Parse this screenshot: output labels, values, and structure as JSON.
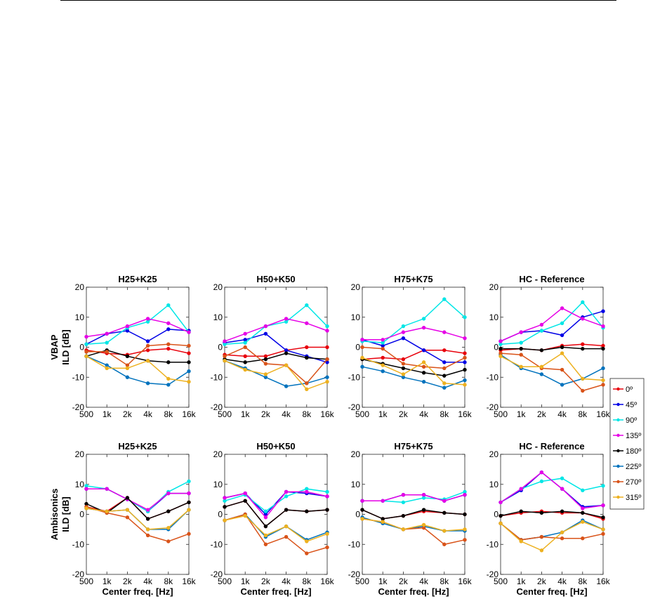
{
  "chart_data": {
    "type": "line",
    "x": [
      "500",
      "1k",
      "2k",
      "4k",
      "8k",
      "16k"
    ],
    "ylim": [
      -20,
      20
    ],
    "yticks": [
      "20",
      "10",
      "0",
      "-10",
      "-20"
    ],
    "xlabel": "Center freq. [Hz]",
    "grid": false,
    "legend_position": "right",
    "legend": [
      "0º",
      "45º",
      "90º",
      "135º",
      "180º",
      "225º",
      "270º",
      "315º"
    ],
    "colors": [
      "#e8000b",
      "#0000e6",
      "#00e6e6",
      "#e600e6",
      "#000000",
      "#0072bd",
      "#d95319",
      "#edb120"
    ],
    "rows": [
      {
        "label_lines": [
          "VBAP",
          "ILD [dB]"
        ],
        "panels": [
          {
            "title": "H25+K25",
            "series": [
              {
                "name": "0º",
                "values": [
                  -1,
                  -2,
                  -2.5,
                  -1,
                  -0.5,
                  -2
                ]
              },
              {
                "name": "45º",
                "values": [
                  1,
                  4.5,
                  5.5,
                  2,
                  6,
                  5.5
                ]
              },
              {
                "name": "90º",
                "values": [
                  1,
                  1.5,
                  6.5,
                  8.5,
                  14,
                  5
                ]
              },
              {
                "name": "135º",
                "values": [
                  3.5,
                  4.5,
                  7,
                  9.5,
                  8,
                  5
                ]
              },
              {
                "name": "180º",
                "values": [
                  -3,
                  -1,
                  -3,
                  -4.5,
                  -5,
                  -5
                ]
              },
              {
                "name": "225º",
                "values": [
                  -3,
                  -6,
                  -10,
                  -12,
                  -12.5,
                  -8
                ]
              },
              {
                "name": "270º",
                "values": [
                  -1.5,
                  -1.5,
                  -6,
                  0.5,
                  1,
                  0.5
                ]
              },
              {
                "name": "315º",
                "values": [
                  -3,
                  -7,
                  -7,
                  -4.5,
                  -10.5,
                  -11.5
                ]
              }
            ]
          },
          {
            "title": "H50+K50",
            "series": [
              {
                "name": "0º",
                "values": [
                  -2.5,
                  -3,
                  -3,
                  -1,
                  0,
                  0
                ]
              },
              {
                "name": "45º",
                "values": [
                  1.5,
                  2.5,
                  4.5,
                  -1,
                  -3,
                  -5
                ]
              },
              {
                "name": "90º",
                "values": [
                  1,
                  1.5,
                  7,
                  8.5,
                  14,
                  7
                ]
              },
              {
                "name": "135º",
                "values": [
                  2,
                  4.5,
                  7,
                  9.5,
                  8,
                  5.5
                ]
              },
              {
                "name": "180º",
                "values": [
                  -4,
                  -5,
                  -4,
                  -2,
                  -3.5,
                  -4
                ]
              },
              {
                "name": "225º",
                "values": [
                  -4.5,
                  -7,
                  -10,
                  -13,
                  -12,
                  -10
                ]
              },
              {
                "name": "270º",
                "values": [
                  -3,
                  0,
                  -5.5,
                  -6,
                  -12,
                  -4
                ]
              },
              {
                "name": "315º",
                "values": [
                  -4.5,
                  -7.5,
                  -9,
                  -6,
                  -14,
                  -11.5
                ]
              }
            ]
          },
          {
            "title": "H75+K75",
            "series": [
              {
                "name": "0º",
                "values": [
                  -4,
                  -3.5,
                  -4,
                  -1,
                  -1,
                  -2
                ]
              },
              {
                "name": "45º",
                "values": [
                  2.5,
                  0.5,
                  3,
                  -1,
                  -5,
                  -5
                ]
              },
              {
                "name": "90º",
                "values": [
                  2,
                  1.5,
                  7,
                  9.5,
                  16,
                  10
                ]
              },
              {
                "name": "135º",
                "values": [
                  2.5,
                  2.5,
                  5,
                  6.5,
                  5,
                  3
                ]
              },
              {
                "name": "180º",
                "values": [
                  -4,
                  -5.5,
                  -7,
                  -8.5,
                  -9.5,
                  -7.5
                ]
              },
              {
                "name": "225º",
                "values": [
                  -6.5,
                  -8,
                  -10,
                  -11.5,
                  -13.5,
                  -11
                ]
              },
              {
                "name": "270º",
                "values": [
                  0,
                  -0.5,
                  -5.5,
                  -6.5,
                  -7,
                  -3.5
                ]
              },
              {
                "name": "315º",
                "values": [
                  -3.5,
                  -6,
                  -9,
                  -5,
                  -12,
                  -12.5
                ]
              }
            ]
          },
          {
            "title": "HC - Reference",
            "series": [
              {
                "name": "0º",
                "values": [
                  -1,
                  -0.5,
                  -1,
                  0.5,
                  1,
                  0.5
                ]
              },
              {
                "name": "45º",
                "values": [
                  2,
                  5,
                  5.5,
                  4,
                  10,
                  12
                ]
              },
              {
                "name": "90º",
                "values": [
                  1,
                  1.5,
                  5.5,
                  8,
                  15,
                  6.5
                ]
              },
              {
                "name": "135º",
                "values": [
                  2,
                  5,
                  7.5,
                  13,
                  9.5,
                  7
                ]
              },
              {
                "name": "180º",
                "values": [
                  -0.5,
                  -0.5,
                  -1,
                  0,
                  -0.5,
                  -0.5
                ]
              },
              {
                "name": "225º",
                "values": [
                  -2.5,
                  -7,
                  -9,
                  -12.5,
                  -10.5,
                  -7
                ]
              },
              {
                "name": "270º",
                "values": [
                  -2,
                  -2.5,
                  -7,
                  -7.5,
                  -14.5,
                  -12.5
                ]
              },
              {
                "name": "315º",
                "values": [
                  -3,
                  -6.5,
                  -6.5,
                  -2,
                  -10.5,
                  -11
                ]
              }
            ]
          }
        ]
      },
      {
        "label_lines": [
          "Ambisonics",
          "ILD [dB]"
        ],
        "panels": [
          {
            "title": "H25+K25",
            "series": [
              {
                "name": "0º",
                "values": [
                  2.5,
                  1,
                  5.5,
                  -1.5,
                  1,
                  4
                ]
              },
              {
                "name": "45º",
                "values": [
                  8.5,
                  8.5,
                  5,
                  1,
                  7,
                  7
                ]
              },
              {
                "name": "90º",
                "values": [
                  9.5,
                  8.5,
                  5,
                  1,
                  7.5,
                  11
                ]
              },
              {
                "name": "135º",
                "values": [
                  8.5,
                  8.5,
                  5,
                  1.5,
                  7,
                  7
                ]
              },
              {
                "name": "180º",
                "values": [
                  3.5,
                  0.5,
                  5.5,
                  -1.5,
                  1,
                  4
                ]
              },
              {
                "name": "225º",
                "values": [
                  2,
                  1,
                  1.5,
                  -5,
                  -5,
                  1.5
                ]
              },
              {
                "name": "270º",
                "values": [
                  2.5,
                  0.5,
                  -1,
                  -7,
                  -9,
                  -6.5
                ]
              },
              {
                "name": "315º",
                "values": [
                  2,
                  1,
                  1.5,
                  -5,
                  -4.5,
                  1.5
                ]
              }
            ]
          },
          {
            "title": "H50+K50",
            "series": [
              {
                "name": "0º",
                "values": [
                  2.5,
                  4.5,
                  -4,
                  1.5,
                  1,
                  1.5
                ]
              },
              {
                "name": "45º",
                "values": [
                  5.5,
                  7,
                  0,
                  7.5,
                  7,
                  6
                ]
              },
              {
                "name": "90º",
                "values": [
                  4.5,
                  6.5,
                  1,
                  6,
                  8.5,
                  7.5
                ]
              },
              {
                "name": "135º",
                "values": [
                  5.5,
                  7,
                  -1,
                  7.5,
                  7.5,
                  6
                ]
              },
              {
                "name": "180º",
                "values": [
                  2.5,
                  4.5,
                  -4,
                  1.5,
                  1,
                  1.5
                ]
              },
              {
                "name": "225º",
                "values": [
                  -2,
                  0,
                  -7.5,
                  -4,
                  -8.5,
                  -6
                ]
              },
              {
                "name": "270º",
                "values": [
                  -2,
                  0,
                  -10,
                  -7.5,
                  -13,
                  -11
                ]
              },
              {
                "name": "315º",
                "values": [
                  -2,
                  -0.5,
                  -7,
                  -4,
                  -9,
                  -6.5
                ]
              }
            ]
          },
          {
            "title": "H75+K75",
            "series": [
              {
                "name": "0º",
                "values": [
                  1.5,
                  -1.5,
                  -0.5,
                  1,
                  0.5,
                  0
                ]
              },
              {
                "name": "45º",
                "values": [
                  4.5,
                  4.5,
                  6.5,
                  6.5,
                  4.5,
                  6.5
                ]
              },
              {
                "name": "90º",
                "values": [
                  4.5,
                  4.5,
                  4,
                  5.5,
                  5,
                  7.5
                ]
              },
              {
                "name": "135º",
                "values": [
                  4.5,
                  4.5,
                  6.5,
                  6.5,
                  4.5,
                  6.5
                ]
              },
              {
                "name": "180º",
                "values": [
                  1.5,
                  -1.5,
                  -0.5,
                  1.5,
                  0.5,
                  0
                ]
              },
              {
                "name": "225º",
                "values": [
                  -1,
                  -3,
                  -5,
                  -4,
                  -5.5,
                  -5.5
                ]
              },
              {
                "name": "270º",
                "values": [
                  -1.5,
                  -2.5,
                  -5,
                  -4.5,
                  -10,
                  -8.5
                ]
              },
              {
                "name": "315º",
                "values": [
                  -1.5,
                  -2.5,
                  -5,
                  -3.5,
                  -5.5,
                  -5
                ]
              }
            ]
          },
          {
            "title": "HC - Reference",
            "series": [
              {
                "name": "0º",
                "values": [
                  -0.5,
                  0.5,
                  1,
                  0.5,
                  0.5,
                  -1.5
                ]
              },
              {
                "name": "45º",
                "values": [
                  4,
                  8,
                  14,
                  8.5,
                  2.5,
                  3
                ]
              },
              {
                "name": "90º",
                "values": [
                  4,
                  8.5,
                  11,
                  12,
                  8,
                  9.5
                ]
              },
              {
                "name": "135º",
                "values": [
                  4,
                  8.5,
                  14,
                  8.5,
                  2,
                  3
                ]
              },
              {
                "name": "180º",
                "values": [
                  -0.5,
                  1,
                  0.5,
                  1,
                  0.5,
                  -1
                ]
              },
              {
                "name": "225º",
                "values": [
                  -3,
                  -8.5,
                  -7.5,
                  -6,
                  -2,
                  -5
                ]
              },
              {
                "name": "270º",
                "values": [
                  -3,
                  -8.5,
                  -7.5,
                  -8,
                  -8,
                  -6.5
                ]
              },
              {
                "name": "315º",
                "values": [
                  -3,
                  -9,
                  -12,
                  -6,
                  -2.5,
                  -5
                ]
              }
            ]
          }
        ]
      }
    ]
  }
}
